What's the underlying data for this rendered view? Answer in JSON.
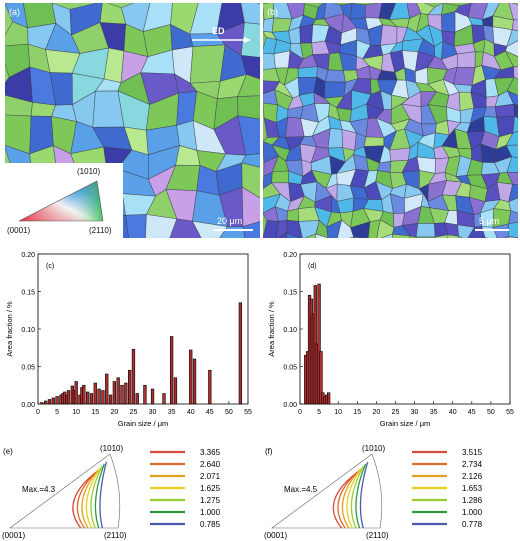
{
  "panels": {
    "a": {
      "label": "(a)",
      "ed_label": "ED",
      "scale_label": "20 μm",
      "ipf": {
        "top": "(1010)",
        "left": "(0001)",
        "right": "(2110)"
      }
    },
    "b": {
      "label": "(b)",
      "scale_label": "5 μm"
    }
  },
  "chart_data": [
    {
      "type": "bar",
      "panel": "(c)",
      "xlabel": "Grain size / μm",
      "ylabel": "Area fraction / %",
      "xlim": [
        0,
        55
      ],
      "ylim": [
        0,
        0.2
      ],
      "xticks": [
        0,
        5,
        10,
        15,
        20,
        25,
        30,
        35,
        40,
        45,
        50,
        55
      ],
      "yticks": [
        "0.00",
        "0.05",
        "0.10",
        "0.15",
        "0.20"
      ],
      "x": [
        1,
        2,
        3,
        4,
        5,
        6,
        6.5,
        7,
        7.5,
        8,
        9,
        9.5,
        10,
        11,
        11.5,
        12,
        13,
        14,
        15,
        16,
        17,
        18,
        19,
        20,
        21,
        22,
        23,
        24,
        25,
        26,
        28,
        30,
        33,
        35,
        36,
        40,
        41,
        45,
        53
      ],
      "values": [
        0.002,
        0.004,
        0.006,
        0.008,
        0.01,
        0.012,
        0.014,
        0.016,
        0.012,
        0.018,
        0.024,
        0.018,
        0.03,
        0.012,
        0.022,
        0.025,
        0.016,
        0.014,
        0.028,
        0.02,
        0.018,
        0.04,
        0.012,
        0.03,
        0.035,
        0.025,
        0.028,
        0.045,
        0.073,
        0.014,
        0.025,
        0.02,
        0.014,
        0.09,
        0.035,
        0.072,
        0.06,
        0.045,
        0.135
      ]
    },
    {
      "type": "bar",
      "panel": "(d)",
      "xlabel": "Grain size / μm",
      "ylabel": "Area fraction / %",
      "xlim": [
        0,
        55
      ],
      "ylim": [
        0,
        0.2
      ],
      "xticks": [
        0,
        5,
        10,
        15,
        20,
        25,
        30,
        35,
        40,
        45,
        50,
        55
      ],
      "yticks": [
        "0.00",
        "0.05",
        "0.10",
        "0.15",
        "0.20"
      ],
      "x": [
        1.5,
        2.0,
        2.5,
        3.0,
        3.5,
        4.0,
        4.5,
        5.0,
        5.5,
        6.0,
        6.5,
        7.0,
        7.5
      ],
      "values": [
        0.065,
        0.07,
        0.145,
        0.14,
        0.12,
        0.158,
        0.08,
        0.16,
        0.07,
        0.015,
        0.01,
        0.012,
        0.015
      ]
    }
  ],
  "pole_figures": [
    {
      "panel": "(e)",
      "max_label": "Max.=4.3",
      "top": "(1010)",
      "left": "(0001)",
      "right": "(2110)",
      "levels": [
        {
          "value": "3.365",
          "color": "#d94a3a"
        },
        {
          "value": "2.640",
          "color": "#e06a2a"
        },
        {
          "value": "2.071",
          "color": "#e0a020"
        },
        {
          "value": "1.625",
          "color": "#e8d020"
        },
        {
          "value": "1.275",
          "color": "#9acc30"
        },
        {
          "value": "1.000",
          "color": "#2e9a3e"
        },
        {
          "value": "0.785",
          "color": "#4a58b0"
        }
      ]
    },
    {
      "panel": "(f)",
      "max_label": "Max.=4.5",
      "top": "(1010)",
      "left": "(0001)",
      "right": "(2110)",
      "levels": [
        {
          "value": "3.515",
          "color": "#d94a3a"
        },
        {
          "value": "2.734",
          "color": "#e06a2a"
        },
        {
          "value": "2.126",
          "color": "#e0a020"
        },
        {
          "value": "1.653",
          "color": "#e8d020"
        },
        {
          "value": "1.286",
          "color": "#9acc30"
        },
        {
          "value": "1.000",
          "color": "#2e9a3e"
        },
        {
          "value": "0.778",
          "color": "#4a58b0"
        }
      ]
    }
  ]
}
